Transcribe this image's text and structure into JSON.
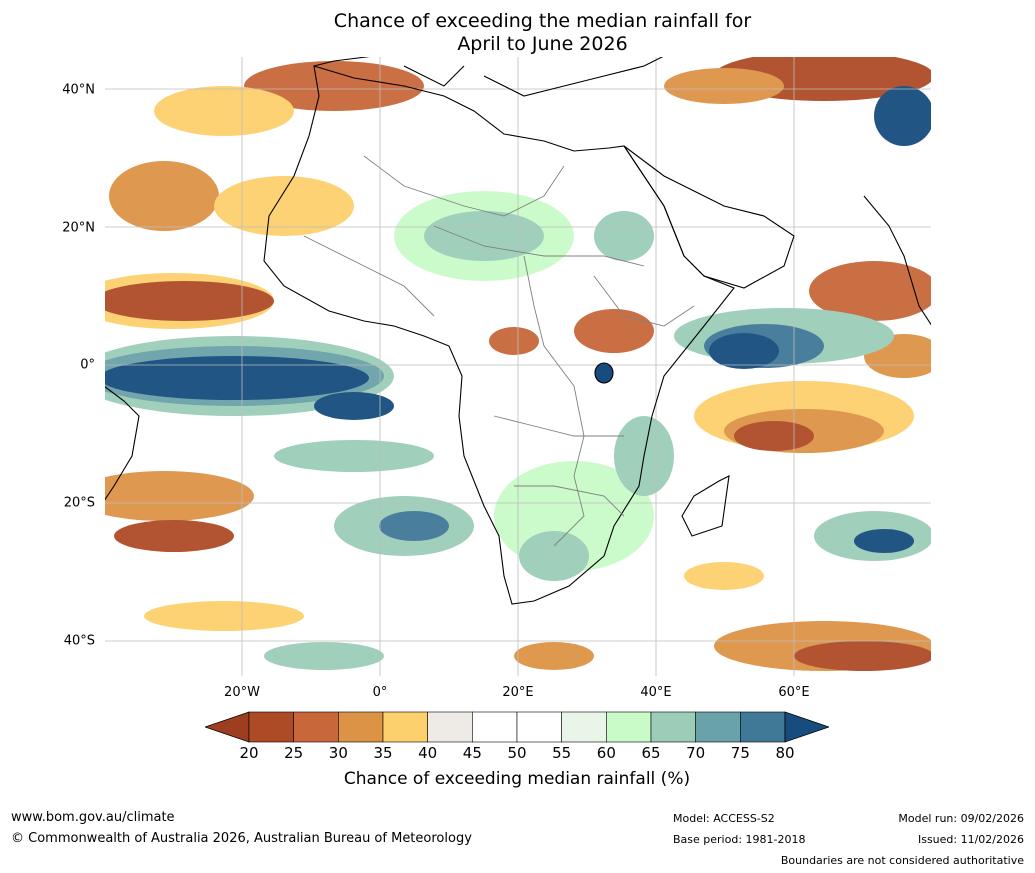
{
  "title": {
    "line1": "Chance of exceeding the median rainfall for",
    "line2": "April to June 2026"
  },
  "map": {
    "region": "Africa",
    "lat_ticks": [
      "40°N",
      "20°N",
      "0°",
      "20°S",
      "40°S"
    ],
    "lon_ticks": [
      "20°W",
      "0°",
      "20°E",
      "40°E",
      "60°E"
    ],
    "extent_lon": [
      -40,
      80
    ],
    "extent_lat": [
      -45,
      45
    ]
  },
  "colorbar": {
    "ticks": [
      "20",
      "25",
      "30",
      "35",
      "40",
      "45",
      "50",
      "55",
      "60",
      "65",
      "70",
      "75",
      "80"
    ],
    "colors": [
      "#9c3e1f",
      "#ae4b27",
      "#c8683a",
      "#dd9346",
      "#fdd06e",
      "#eeebe6",
      "#ffffff",
      "#ffffff",
      "#e8f5e8",
      "#c9fbc9",
      "#9bcdb8",
      "#69a2a8",
      "#407898",
      "#164c7e"
    ],
    "label": "Chance of exceeding median rainfall (%)"
  },
  "footer": {
    "website": "www.bom.gov.au/climate",
    "copyright": "© Commonwealth of Australia 2026, Australian Bureau of Meteorology",
    "model": "Model: ACCESS-S2",
    "base_period": "Base period: 1981-2018",
    "model_run": "Model run: 09/02/2026",
    "issued": "Issued: 11/02/2026",
    "disclaimer": "Boundaries are not considered authoritative"
  }
}
